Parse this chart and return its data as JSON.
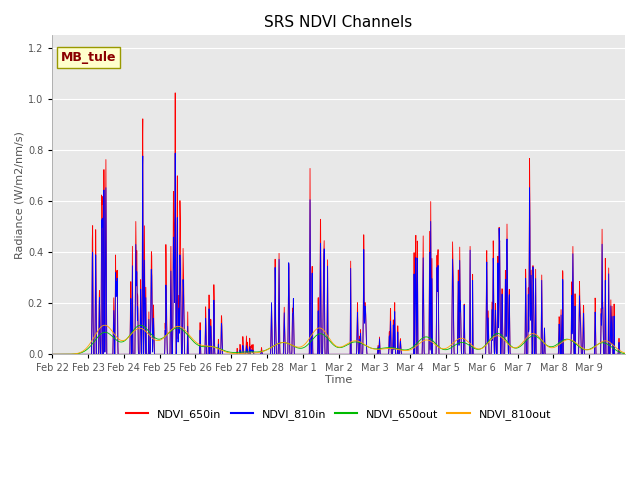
{
  "title": "SRS NDVI Channels",
  "xlabel": "Time",
  "ylabel": "Radiance (W/m2/nm/s)",
  "annotation_text": "MB_tule",
  "annotation_color": "#8B0000",
  "annotation_bg": "#FFFFCC",
  "annotation_border": "#999900",
  "colors": {
    "NDVI_650in": "#FF0000",
    "NDVI_810in": "#0000FF",
    "NDVI_650out": "#00BB00",
    "NDVI_810out": "#FFA500"
  },
  "background_color": "#E8E8E8",
  "ylim": [
    0.0,
    1.25
  ],
  "yticks": [
    0.0,
    0.2,
    0.4,
    0.6,
    0.8,
    1.0,
    1.2
  ],
  "xtick_labels": [
    "Feb 22",
    "Feb 23",
    "Feb 24",
    "Feb 25",
    "Feb 26",
    "Feb 27",
    "Feb 28",
    "Mar 1",
    "Mar 2",
    "Mar 3",
    "Mar 4",
    "Mar 5",
    "Mar 6",
    "Mar 7",
    "Mar 8",
    "Mar 9"
  ],
  "title_fontsize": 11,
  "axis_label_fontsize": 8,
  "tick_fontsize": 7,
  "legend_fontsize": 8
}
